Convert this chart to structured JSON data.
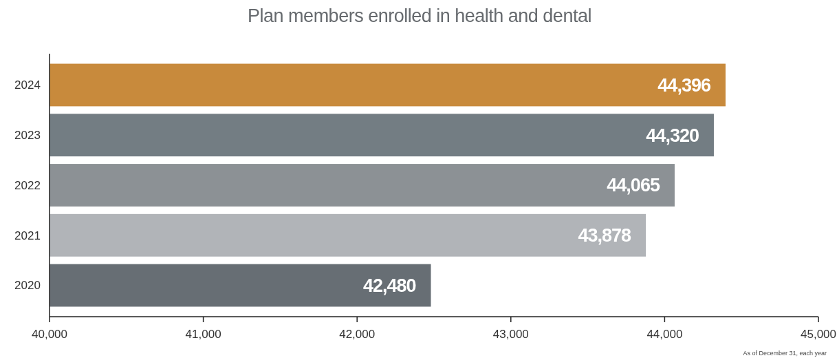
{
  "chart_data": {
    "type": "bar",
    "orientation": "horizontal",
    "title": "Plan members enrolled in health and dental",
    "categories": [
      "2024",
      "2023",
      "2022",
      "2021",
      "2020"
    ],
    "values": [
      44396,
      44320,
      44065,
      43878,
      42480
    ],
    "colors": [
      "#c88a3c",
      "#737d83",
      "#8c9195",
      "#b1b4b8",
      "#676e74"
    ],
    "xlim": [
      40000,
      45000
    ],
    "xticks": [
      {
        "value": 40000,
        "label": "40,000"
      },
      {
        "value": 41000,
        "label": "41,000"
      },
      {
        "value": 42000,
        "label": "42,000"
      },
      {
        "value": 43000,
        "label": "43,000"
      },
      {
        "value": 44000,
        "label": "44,000"
      },
      {
        "value": 45000,
        "label": "45,000"
      }
    ],
    "value_labels": [
      "44,396",
      "44,320",
      "44,065",
      "43,878",
      "42,480"
    ],
    "grid": false,
    "annotations": [
      "As of December 31, each year"
    ]
  }
}
